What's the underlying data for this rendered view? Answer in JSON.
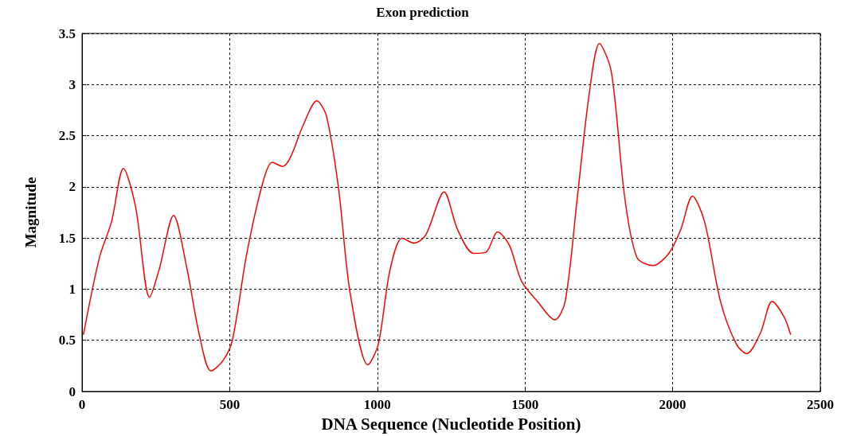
{
  "chart_data": {
    "type": "line",
    "title": "Exon prediction",
    "xlabel": "DNA Sequence (Nucleotide Position)",
    "ylabel": "Magnitude",
    "xlim": [
      0,
      2500
    ],
    "xticks": [
      0,
      500,
      1000,
      1500,
      2000,
      2500
    ],
    "ylim": [
      0,
      3.5
    ],
    "yticks": [
      0,
      0.5,
      1,
      1.5,
      2,
      2.5,
      3,
      3.5
    ],
    "grid": true,
    "marker": "none",
    "line_style": "solid",
    "series": [
      {
        "color": "#ff0000",
        "x": [
          5,
          59,
          100,
          140,
          181,
          229,
          261,
          310,
          356,
          396,
          437,
          477,
          509,
          558,
          612,
          644,
          679,
          706,
          747,
          795,
          827,
          868,
          908,
          968,
          1003,
          1043,
          1084,
          1124,
          1164,
          1226,
          1272,
          1326,
          1367,
          1407,
          1447,
          1488,
          1542,
          1601,
          1636,
          1677,
          1717,
          1752,
          1792,
          1838,
          1879,
          1933,
          1987,
          2027,
          2067,
          2108,
          2162,
          2216,
          2251,
          2297,
          2337,
          2377,
          2399
        ],
        "values": [
          0.56,
          1.31,
          1.66,
          2.18,
          1.81,
          0.92,
          1.19,
          1.72,
          1.19,
          0.57,
          0.2,
          0.3,
          0.5,
          1.35,
          2.04,
          2.24,
          2.2,
          2.29,
          2.59,
          2.84,
          2.7,
          2.0,
          0.96,
          0.26,
          0.46,
          1.19,
          1.5,
          1.45,
          1.53,
          1.95,
          1.58,
          1.35,
          1.36,
          1.56,
          1.43,
          1.08,
          0.88,
          0.7,
          0.88,
          1.89,
          2.9,
          3.4,
          3.13,
          1.89,
          1.31,
          1.23,
          1.35,
          1.58,
          1.91,
          1.66,
          0.88,
          0.46,
          0.37,
          0.57,
          0.88,
          0.73,
          0.56
        ]
      }
    ]
  }
}
